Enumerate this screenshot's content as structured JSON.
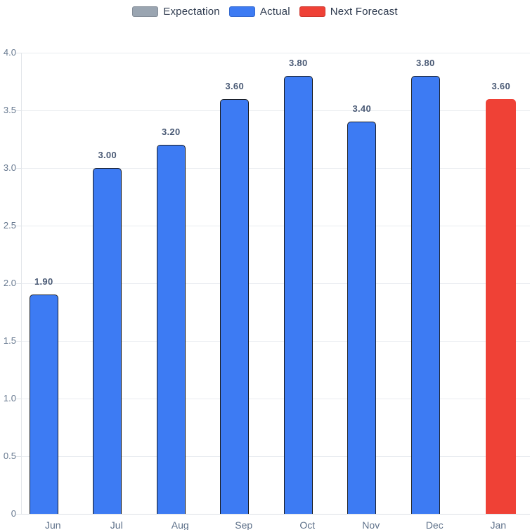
{
  "legend": {
    "items": [
      {
        "label": "Expectation",
        "color": "#9aa5b1"
      },
      {
        "label": "Actual",
        "color": "#3d7bf3"
      },
      {
        "label": "Next Forecast",
        "color": "#ef4136"
      }
    ]
  },
  "chart_data": {
    "type": "bar",
    "title": "",
    "xlabel": "",
    "ylabel": "",
    "categories": [
      "Jun",
      "Jul",
      "Aug",
      "Sep",
      "Oct",
      "Nov",
      "Dec",
      "Jan"
    ],
    "series": [
      {
        "name": "Expectation",
        "color": "#9aa5b1",
        "values": [
          null,
          null,
          null,
          null,
          null,
          null,
          null,
          null
        ],
        "labels": [
          null,
          null,
          null,
          null,
          null,
          null,
          null,
          null
        ]
      },
      {
        "name": "Actual",
        "color": "#3d7bf3",
        "values": [
          1.9,
          3.0,
          3.2,
          3.6,
          3.8,
          3.4,
          3.8,
          null
        ],
        "labels": [
          "1.90",
          "3.00",
          "3.20",
          "3.60",
          "3.80",
          "3.40",
          "3.80",
          null
        ]
      },
      {
        "name": "Next Forecast",
        "color": "#ef4136",
        "values": [
          null,
          null,
          null,
          null,
          null,
          null,
          null,
          3.6
        ],
        "labels": [
          null,
          null,
          null,
          null,
          null,
          null,
          null,
          "3.60"
        ]
      }
    ],
    "ylim": [
      0,
      4
    ],
    "y_ticks": [
      "0",
      "0.5",
      "1.0",
      "1.5",
      "2.0",
      "2.5",
      "3.0",
      "3.5",
      "4.0"
    ],
    "grid": true,
    "legend_position": "top"
  },
  "colors": {
    "grid": "#e9ecf0",
    "axis_line": "#e2e6ea",
    "tick_label": "#66788f",
    "value_label": "#4a5a75",
    "legend_text": "#2f3b4f",
    "bar_border": "#191c22"
  }
}
